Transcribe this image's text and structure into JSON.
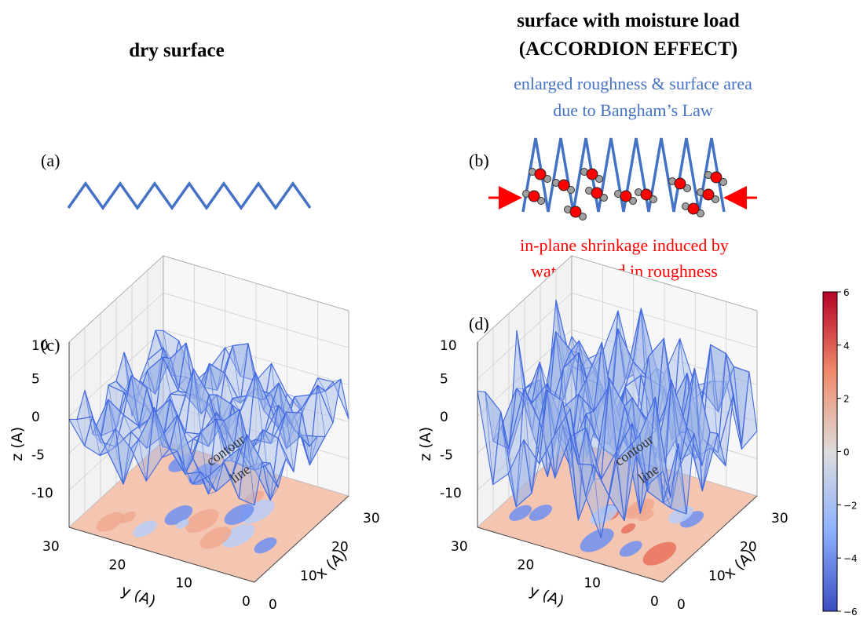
{
  "titles": {
    "left": "dry surface",
    "right_line1": "surface with moisture load",
    "right_line2": "(ACCORDION EFFECT)"
  },
  "annotations": {
    "blue_line1": "enlarged roughness & surface area",
    "blue_line2": "due to Bangham’s Law",
    "red_line1": "in-plane shrinkage induced by",
    "red_line2": "water trapped in roughness",
    "contour_word1": "contour",
    "contour_word2": "line"
  },
  "panels": {
    "a": "(a)",
    "b": "(b)",
    "c": "(c)",
    "d": "(d)"
  },
  "axes": {
    "z_label": "z (A)",
    "y_label": "y (A)",
    "x_label": "x (A)",
    "z_ticks": [
      "10",
      "5",
      "0",
      "-5",
      "-10"
    ],
    "y_ticks": [
      "30",
      "20",
      "10",
      "0"
    ],
    "x_ticks": [
      "0",
      "10",
      "20",
      "30"
    ]
  },
  "colorbar": {
    "ticks": [
      "6",
      "4",
      "2",
      "0",
      "−2",
      "−4",
      "−6"
    ],
    "colormap": "coolwarm",
    "range": [
      -6,
      6
    ]
  },
  "colors": {
    "title": "#000000",
    "blue_text": "#4472c4",
    "red_text": "#ff0000",
    "zigzag": "#4472c4",
    "mesh": "#4169e1",
    "water_oxygen": "#ff0000",
    "water_hydrogen": "#a0a0a0"
  }
}
